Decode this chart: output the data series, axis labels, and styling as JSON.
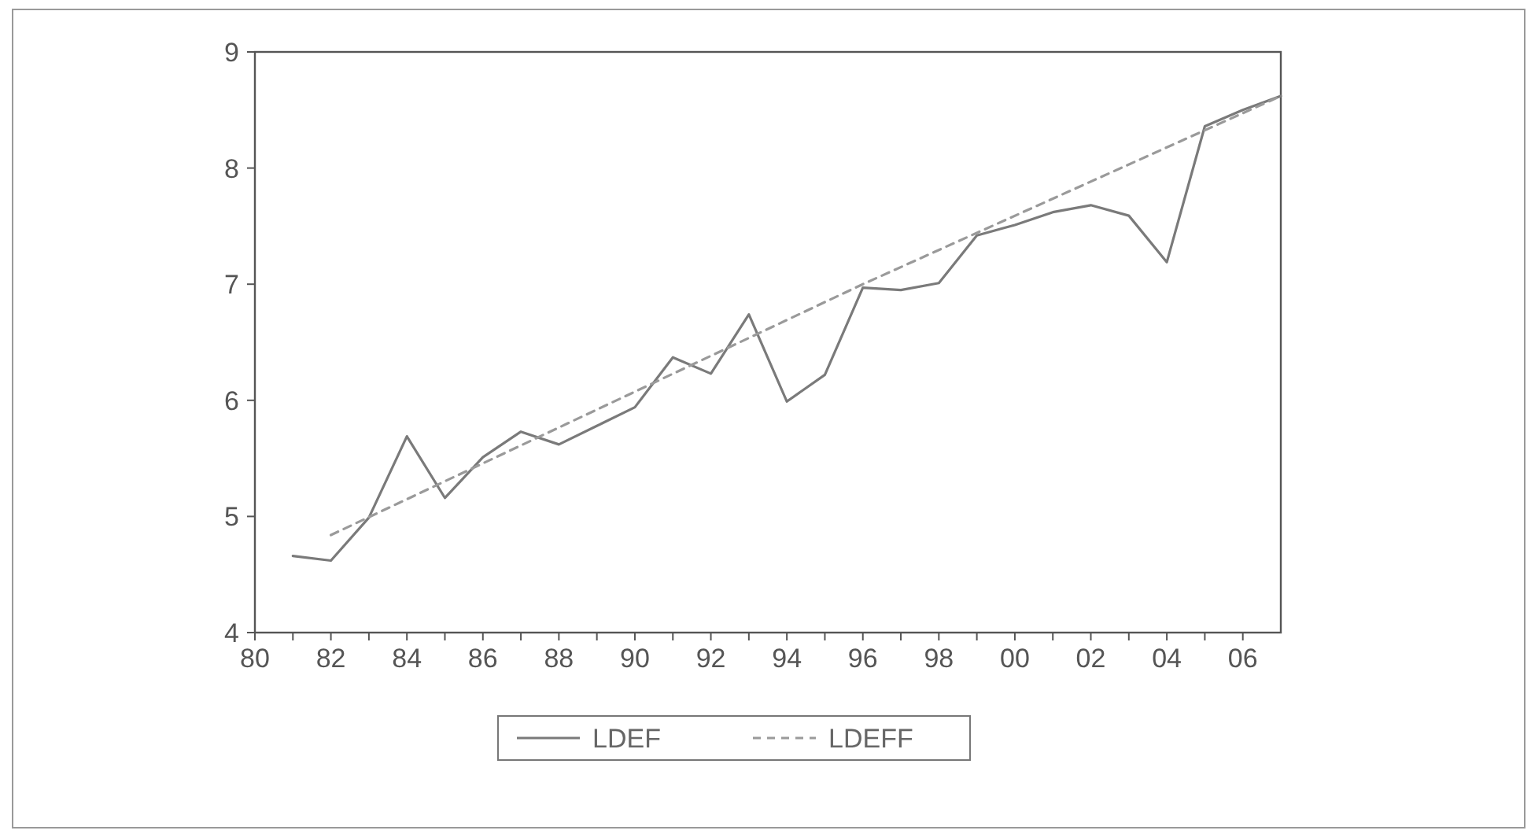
{
  "chart_data": {
    "type": "line",
    "x": [
      1981,
      1982,
      1983,
      1984,
      1985,
      1986,
      1987,
      1988,
      1989,
      1990,
      1991,
      1992,
      1993,
      1994,
      1995,
      1996,
      1997,
      1998,
      1999,
      2000,
      2001,
      2002,
      2003,
      2004,
      2005,
      2006,
      2007
    ],
    "series": [
      {
        "name": "LDEF",
        "color": "#7a7a7a",
        "line_style": "solid",
        "values": [
          4.66,
          4.62,
          4.99,
          5.69,
          5.16,
          5.51,
          5.73,
          5.62,
          5.78,
          5.94,
          6.37,
          6.23,
          6.74,
          5.99,
          6.22,
          6.97,
          6.95,
          7.01,
          7.42,
          7.51,
          7.62,
          7.68,
          7.59,
          7.19,
          8.36,
          8.5,
          8.62
        ]
      },
      {
        "name": "LDEFF",
        "color": "#9a9a9a",
        "line_style": "dashed",
        "x": [
          1982,
          1996,
          2007
        ],
        "values": [
          4.84,
          7.0,
          8.62
        ]
      }
    ],
    "xlim": [
      1980,
      2007
    ],
    "xticks": [
      {
        "value": 1980,
        "label": "80"
      },
      {
        "value": 1981,
        "label": null
      },
      {
        "value": 1982,
        "label": "82"
      },
      {
        "value": 1983,
        "label": null
      },
      {
        "value": 1984,
        "label": "84"
      },
      {
        "value": 1985,
        "label": null
      },
      {
        "value": 1986,
        "label": "86"
      },
      {
        "value": 1987,
        "label": null
      },
      {
        "value": 1988,
        "label": "88"
      },
      {
        "value": 1989,
        "label": null
      },
      {
        "value": 1990,
        "label": "90"
      },
      {
        "value": 1991,
        "label": null
      },
      {
        "value": 1992,
        "label": "92"
      },
      {
        "value": 1993,
        "label": null
      },
      {
        "value": 1994,
        "label": "94"
      },
      {
        "value": 1995,
        "label": null
      },
      {
        "value": 1996,
        "label": "96"
      },
      {
        "value": 1997,
        "label": null
      },
      {
        "value": 1998,
        "label": "98"
      },
      {
        "value": 1999,
        "label": null
      },
      {
        "value": 2000,
        "label": "00"
      },
      {
        "value": 2001,
        "label": null
      },
      {
        "value": 2002,
        "label": "02"
      },
      {
        "value": 2003,
        "label": null
      },
      {
        "value": 2004,
        "label": "04"
      },
      {
        "value": 2005,
        "label": null
      },
      {
        "value": 2006,
        "label": "06"
      }
    ],
    "ylim": [
      4,
      9
    ],
    "yticks": [
      4,
      5,
      6,
      7,
      8,
      9
    ],
    "grid": false,
    "legend": "bottom",
    "marker": "none"
  }
}
